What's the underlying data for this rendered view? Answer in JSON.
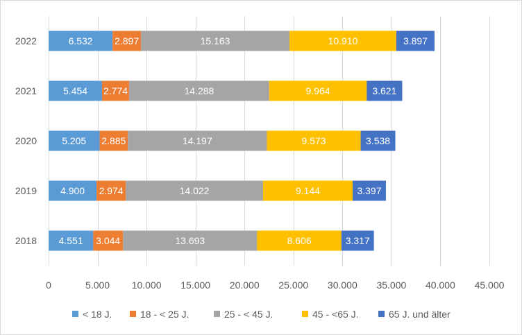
{
  "chart_data": {
    "type": "bar",
    "orientation": "horizontal",
    "stacked": true,
    "title": "",
    "xlabel": "",
    "ylabel": "",
    "xlim": [
      0,
      45000
    ],
    "x_ticks": [
      0,
      5000,
      10000,
      15000,
      20000,
      25000,
      30000,
      35000,
      40000,
      45000
    ],
    "x_tick_labels": [
      "0",
      "5.000",
      "10.000",
      "15.000",
      "20.000",
      "25.000",
      "30.000",
      "35.000",
      "40.000",
      "45.000"
    ],
    "grid": true,
    "legend_position": "bottom",
    "categories": [
      "2022",
      "2021",
      "2020",
      "2019",
      "2018"
    ],
    "series": [
      {
        "name": "< 18 J.",
        "color": "#5b9bd5",
        "values": [
          6532,
          5454,
          5205,
          4900,
          4551
        ],
        "labels": [
          "6.532",
          "5.454",
          "5.205",
          "4.900",
          "4.551"
        ]
      },
      {
        "name": "18 - < 25 J.",
        "color": "#ed7d31",
        "values": [
          2897,
          2774,
          2885,
          2974,
          3044
        ],
        "labels": [
          "2.897",
          "2.774",
          "2.885",
          "2.974",
          "3.044"
        ]
      },
      {
        "name": "25 - < 45 J.",
        "color": "#a5a5a5",
        "values": [
          15163,
          14288,
          14197,
          14022,
          13693
        ],
        "labels": [
          "15.163",
          "14.288",
          "14.197",
          "14.022",
          "13.693"
        ]
      },
      {
        "name": "45 - <65 J.",
        "color": "#ffc000",
        "values": [
          10910,
          9964,
          9573,
          9144,
          8606
        ],
        "labels": [
          "10.910",
          "9.964",
          "9.573",
          "9.144",
          "8.606"
        ]
      },
      {
        "name": "65 J. und älter",
        "color": "#4472c4",
        "values": [
          3897,
          3621,
          3538,
          3397,
          3317
        ],
        "labels": [
          "3.897",
          "3.621",
          "3.538",
          "3.397",
          "3.317"
        ]
      }
    ],
    "colors": {
      "gridline": "#d9d9d9",
      "axis_text": "#595959",
      "data_label": "#ffffff"
    }
  }
}
